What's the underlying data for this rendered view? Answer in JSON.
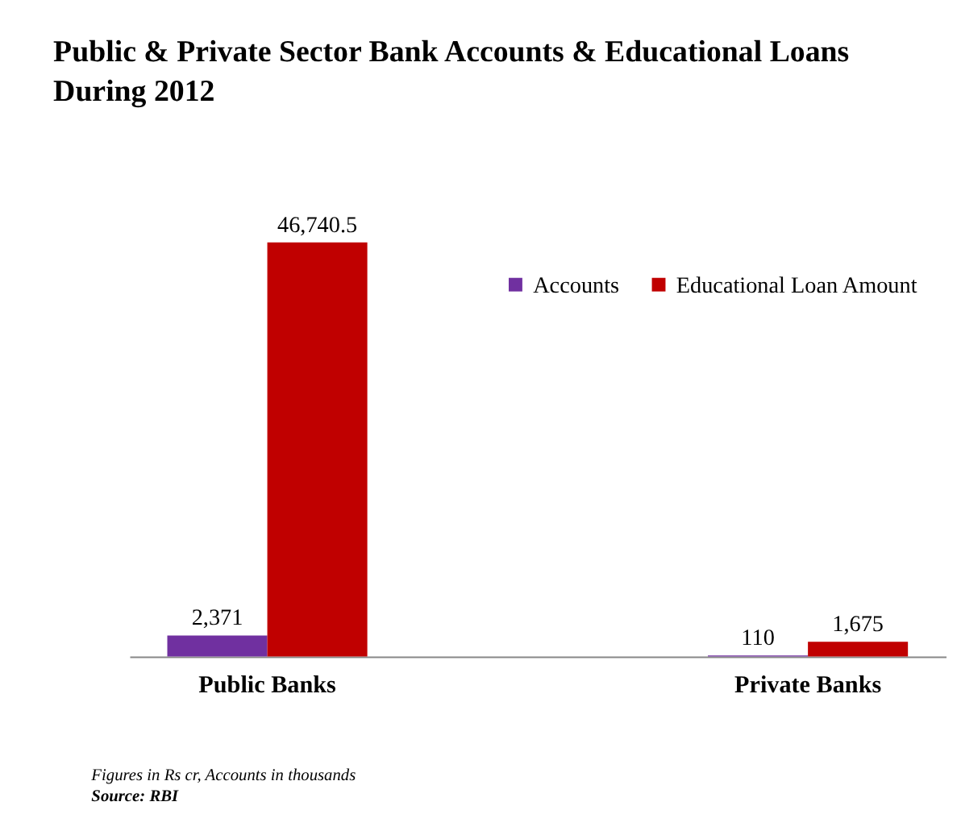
{
  "chart_data": {
    "type": "bar",
    "title": "Public & Private Sector Bank Accounts & Educational Loans During 2012",
    "categories": [
      "Public Banks",
      "Private Banks"
    ],
    "series": [
      {
        "name": "Accounts",
        "color": "#7030a0",
        "values": [
          2371,
          110
        ],
        "value_labels": [
          "2,371",
          "110"
        ]
      },
      {
        "name": "Educational Loan Amount",
        "color": "#c00000",
        "values": [
          46740.5,
          1675
        ],
        "value_labels": [
          "46,740.5",
          "1,675"
        ]
      }
    ],
    "legend": "top right",
    "grid": false,
    "annotations": [
      "Figures in Rs cr, Accounts in thousands",
      "Source: RBI"
    ]
  }
}
